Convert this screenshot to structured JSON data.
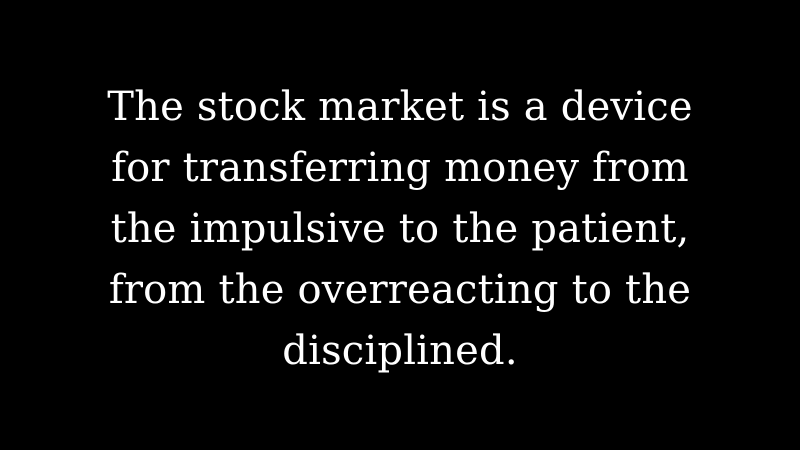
{
  "quote": {
    "lines": [
      "The stock market is a device",
      "for transferring money from",
      "the impulsive to the patient,",
      "from the overreacting to the",
      "disciplined."
    ],
    "text_color": "#ffffff"
  },
  "background_color": "#000000"
}
